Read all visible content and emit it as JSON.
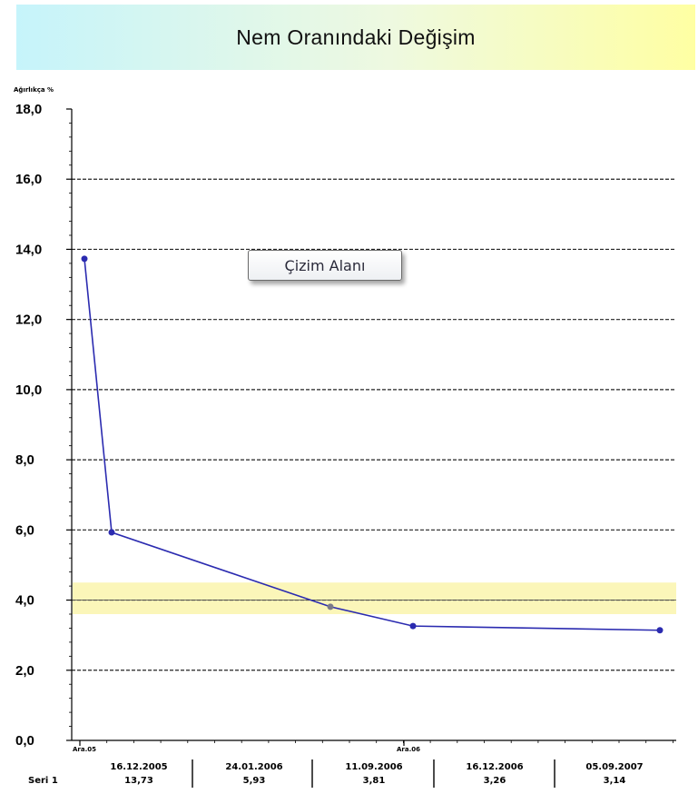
{
  "title": "Nem Oranındaki Değişim",
  "callout_label": "Çizim Alanı",
  "colors": {
    "line": "#2b2bb0",
    "band_fill": "#fbf6b9",
    "title_gradient_start": "#c6f4fb",
    "title_gradient_end": "#ffffa3"
  },
  "chart_data": {
    "type": "line",
    "ylabel": "Ağırlıkça %",
    "ylim": [
      0,
      18
    ],
    "y_ticks": [
      "0,0",
      "2,0",
      "4,0",
      "6,0",
      "8,0",
      "10,0",
      "12,0",
      "14,0",
      "16,0",
      "18,0"
    ],
    "x_axis_labels": [
      "Ara.05",
      "Ara.06"
    ],
    "series": [
      {
        "name": "Seri 1",
        "points": [
          {
            "date": "16.12.2005",
            "value": 13.73,
            "label": "13,73"
          },
          {
            "date": "24.01.2006",
            "value": 5.93,
            "label": "5,93"
          },
          {
            "date": "11.09.2006",
            "value": 3.81,
            "label": "3,81"
          },
          {
            "date": "16.12.2006",
            "value": 3.26,
            "label": "3,26"
          },
          {
            "date": "05.09.2007",
            "value": 3.14,
            "label": "3,14"
          }
        ]
      }
    ],
    "reference_band": {
      "from": 3.6,
      "to": 4.5
    },
    "reference_line": 4.0,
    "grid": "horizontal dashed"
  }
}
